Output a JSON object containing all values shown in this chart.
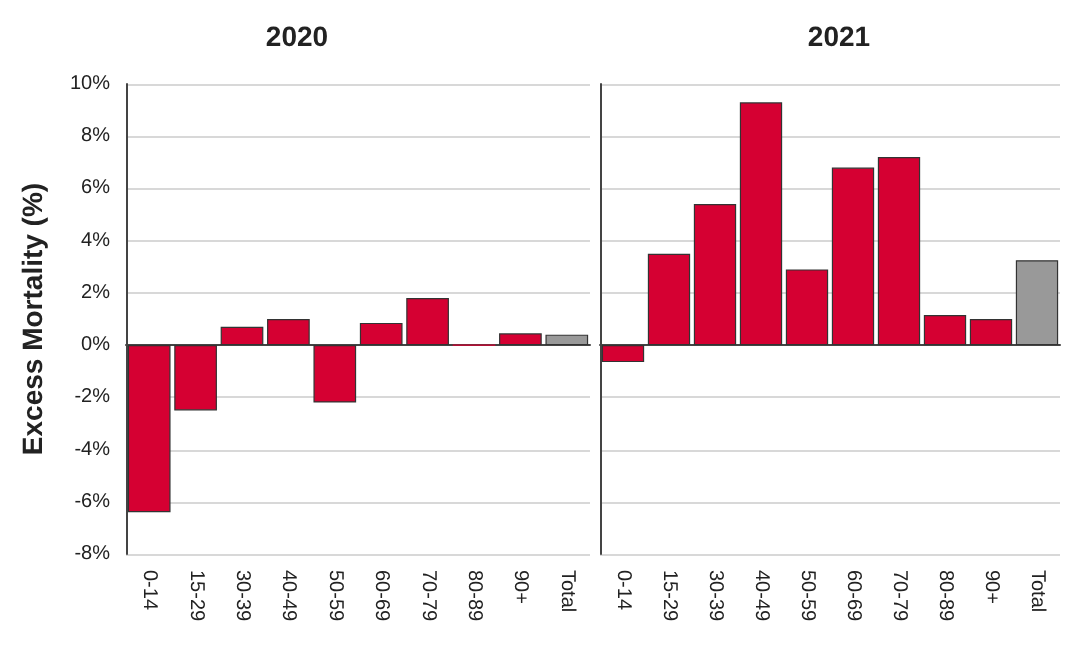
{
  "chart_data": [
    {
      "type": "bar",
      "title": "2020",
      "ylabel": "Excess Mortality (%)",
      "categories": [
        "0-14",
        "15-29",
        "30-39",
        "40-49",
        "50-59",
        "60-69",
        "70-79",
        "80-89",
        "90+",
        "Total"
      ],
      "values": [
        -6.4,
        -2.5,
        0.7,
        1.0,
        -2.2,
        0.85,
        1.8,
        0,
        0.45,
        0.4
      ],
      "colors": [
        "#d50032",
        "#d50032",
        "#d50032",
        "#d50032",
        "#d50032",
        "#d50032",
        "#d50032",
        "#d50032",
        "#d50032",
        "#999999"
      ],
      "ylim": [
        -8,
        10
      ],
      "yticks": [
        {
          "value": -8,
          "label": "-8%"
        },
        {
          "value": -6,
          "label": "-6%"
        },
        {
          "value": -4,
          "label": "-4%"
        },
        {
          "value": -2,
          "label": "-2%"
        },
        {
          "value": 0,
          "label": "0%"
        },
        {
          "value": 2,
          "label": "2%"
        },
        {
          "value": 4,
          "label": "4%"
        },
        {
          "value": 6,
          "label": "6%"
        },
        {
          "value": 8,
          "label": "8%"
        },
        {
          "value": 10,
          "label": "10%"
        }
      ],
      "grid": "y"
    },
    {
      "type": "bar",
      "title": "2021",
      "categories": [
        "0-14",
        "15-29",
        "30-39",
        "40-49",
        "50-59",
        "60-69",
        "70-79",
        "80-89",
        "90+",
        "Total"
      ],
      "values": [
        -0.65,
        3.5,
        5.4,
        9.3,
        2.9,
        6.8,
        7.2,
        1.15,
        1.0,
        3.25
      ],
      "colors": [
        "#d50032",
        "#d50032",
        "#d50032",
        "#d50032",
        "#d50032",
        "#d50032",
        "#d50032",
        "#d50032",
        "#d50032",
        "#999999"
      ],
      "ylim": [
        -8,
        10
      ],
      "yticks": [
        -8,
        -6,
        -4,
        -2,
        0,
        2,
        4,
        6,
        8,
        10
      ],
      "grid": "y",
      "tick_labels": "x"
    }
  ]
}
